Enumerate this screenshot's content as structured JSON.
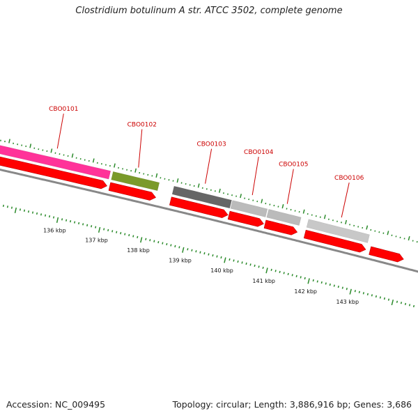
{
  "title": "Clostridium botulinum A str. ATCC 3502, complete genome",
  "accession": "Accession: NC_009495",
  "summary": "Topology: circular; Length: 3,886,916 bp; Genes: 3,686",
  "colors": {
    "gene_label": "#cc0000",
    "cds_arrow": "#ff0000",
    "backbone": "#888888",
    "tick": "#2a8a2a",
    "feature_pink": "#ff3399",
    "feature_olive": "#7a9a2a",
    "feature_dark_gray": "#666666",
    "feature_light_gray": "#bbbbbb"
  },
  "genes": [
    {
      "id": "CBO0101",
      "start_kb": 134.3,
      "end_kb": 136.94,
      "color": "#ff3399"
    },
    {
      "id": "CBO0102",
      "start_kb": 137.0,
      "end_kb": 138.1,
      "color": "#7a9a2a"
    },
    {
      "id": "CBO0103",
      "start_kb": 138.45,
      "end_kb": 139.82,
      "color": "#666666"
    },
    {
      "id": "CBO0104",
      "start_kb": 139.84,
      "end_kb": 140.67,
      "color": "#bbbbbb"
    },
    {
      "id": "CBO0105",
      "start_kb": 140.7,
      "end_kb": 141.47,
      "color": "#bbbbbb"
    },
    {
      "id": "CBO0106",
      "start_kb": 141.65,
      "end_kb": 143.1,
      "color": "#c8c8c8"
    }
  ],
  "cds_arrows": [
    {
      "start_kb": 134.3,
      "end_kb": 136.94
    },
    {
      "start_kb": 137.0,
      "end_kb": 138.1
    },
    {
      "start_kb": 138.45,
      "end_kb": 139.82
    },
    {
      "start_kb": 139.84,
      "end_kb": 140.67
    },
    {
      "start_kb": 140.7,
      "end_kb": 141.47
    },
    {
      "start_kb": 141.65,
      "end_kb": 143.1
    },
    {
      "start_kb": 143.2,
      "end_kb": 144.0
    }
  ],
  "kbp_ticks": [
    {
      "kb": 136,
      "label": "136 kbp"
    },
    {
      "kb": 137,
      "label": "137 kbp"
    },
    {
      "kb": 138,
      "label": "138 kbp"
    },
    {
      "kb": 139,
      "label": "139 kbp"
    },
    {
      "kb": 140,
      "label": "140 kbp"
    },
    {
      "kb": 141,
      "label": "141 kbp"
    },
    {
      "kb": 142,
      "label": "142 kbp"
    },
    {
      "kb": 143,
      "label": "143 kbp"
    }
  ]
}
